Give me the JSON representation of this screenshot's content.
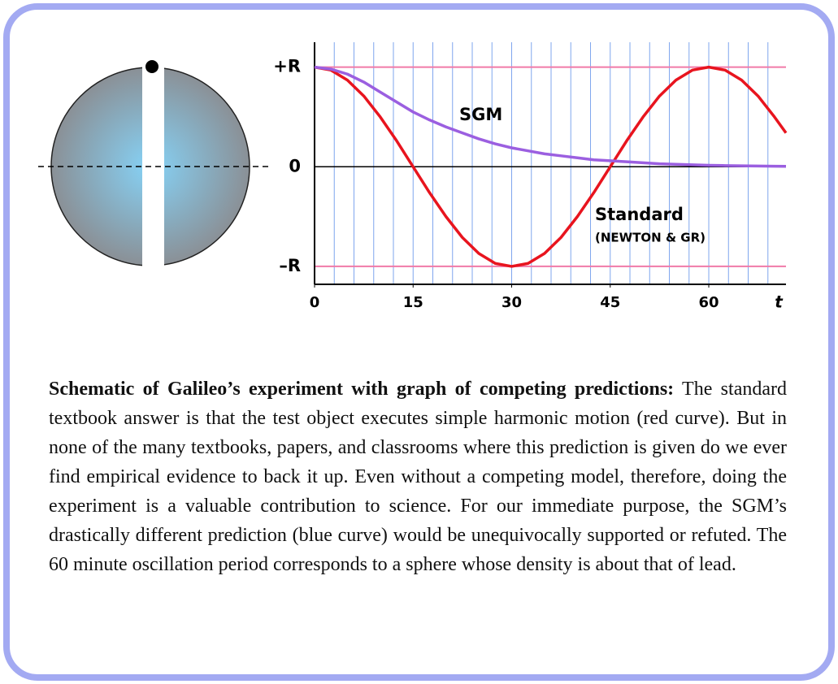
{
  "chart_data": {
    "type": "line",
    "x": [
      0,
      2.5,
      5,
      7.5,
      10,
      12.5,
      15,
      17.5,
      20,
      22.5,
      25,
      27.5,
      30,
      32.5,
      35,
      37.5,
      40,
      42.5,
      45,
      47.5,
      50,
      52.5,
      55,
      57.5,
      60,
      62.5,
      65,
      67.5,
      70,
      71.75
    ],
    "series": [
      {
        "name": "Standard",
        "color": "#e8141e",
        "values": [
          1,
          0.97,
          0.87,
          0.71,
          0.5,
          0.26,
          0,
          -0.26,
          -0.5,
          -0.71,
          -0.87,
          -0.97,
          -1,
          -0.97,
          -0.87,
          -0.71,
          -0.5,
          -0.26,
          0,
          0.26,
          0.5,
          0.71,
          0.87,
          0.97,
          1,
          0.97,
          0.87,
          0.71,
          0.5,
          0.34
        ]
      },
      {
        "name": "SGM",
        "color": "#9b5fe0",
        "values": [
          1,
          0.98,
          0.93,
          0.85,
          0.75,
          0.65,
          0.55,
          0.47,
          0.4,
          0.34,
          0.28,
          0.23,
          0.19,
          0.16,
          0.13,
          0.11,
          0.09,
          0.07,
          0.06,
          0.05,
          0.04,
          0.03,
          0.025,
          0.02,
          0.015,
          0.012,
          0.01,
          0.007,
          0.005,
          0.004
        ]
      }
    ],
    "annotation": "(NEWTON & GR)",
    "xlabel": "t",
    "xlim": [
      0,
      71.75
    ],
    "xticks": [
      0,
      15,
      30,
      45,
      60
    ],
    "minor_xticks": [
      3,
      6,
      9,
      12,
      15,
      18,
      21,
      24,
      27,
      30,
      33,
      36,
      39,
      42,
      45,
      48,
      51,
      54,
      57,
      60,
      63,
      66,
      69
    ],
    "ylim": [
      -1.18,
      1.25
    ],
    "yticks": [
      {
        "value": -1,
        "label": "–R"
      },
      0,
      {
        "value": 1,
        "label": "+R"
      }
    ],
    "grid": true
  },
  "caption": {
    "lead": "Schematic of Galileo’s experiment with graph of competing predictions:",
    "text": "The standard textbook answer is that the test object executes simple harmonic motion (red curve).  But in none of the many textbooks, papers, and classrooms where this prediction is given do we ever find empirical evidence to back it up. Even without a competing model, therefore, doing the experiment is a valuable contribution to science.  For our immediate purpose, the SGM’s drastically different prediction (blue curve) would be unequivocally supported or refuted. The 60 minute oscillation period corresponds to a sphere whose density is about that of lead."
  }
}
